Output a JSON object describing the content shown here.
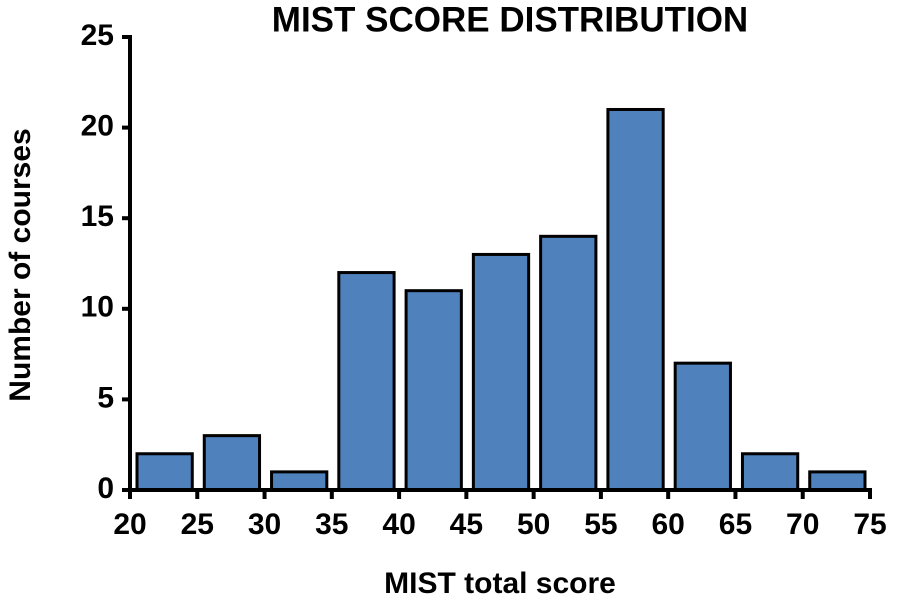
{
  "chart_data": {
    "type": "histogram",
    "title": "MIST SCORE DISTRIBUTION",
    "x_label": "MIST total score",
    "y_label": "Number of courses",
    "bins": [
      20,
      25,
      30,
      35,
      40,
      45,
      50,
      55,
      60,
      65,
      70,
      75
    ],
    "counts": [
      2,
      3,
      1,
      12,
      11,
      13,
      14,
      21,
      7,
      2,
      1
    ],
    "color": "#4f81bd",
    "xlim": [
      20,
      75
    ],
    "xticks": [
      20,
      25,
      30,
      35,
      40,
      45,
      50,
      55,
      60,
      65,
      70,
      75
    ],
    "ylim": [
      0,
      25
    ],
    "yticks": [
      0,
      5,
      10,
      15,
      20,
      25
    ],
    "grid": false
  }
}
